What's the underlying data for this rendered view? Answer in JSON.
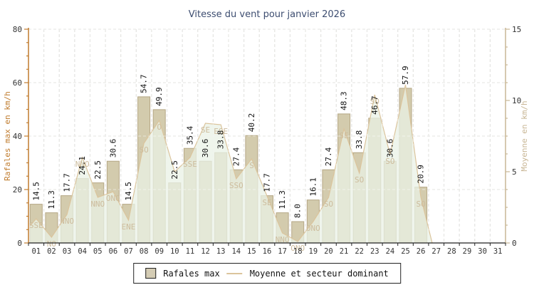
{
  "title": "Vitesse du vent pour janvier 2026",
  "legend": {
    "rafales_label": "Rafales max",
    "moyenne_label": "Moyenne et secteur dominant"
  },
  "chart_data": {
    "type": "bar",
    "title": "Vitesse du vent pour janvier 2026",
    "xlabel": "",
    "ylabel_left": "Rafales max en km/h",
    "ylabel_right": "Moyenne en km/h",
    "ylim_left": [
      0,
      80
    ],
    "ylim_right": [
      0,
      15
    ],
    "left_ticks": [
      0,
      20,
      40,
      60,
      80
    ],
    "right_ticks": [
      0,
      5,
      10,
      15
    ],
    "grid": true,
    "legend_position": "bottom",
    "categories": [
      "01",
      "02",
      "03",
      "04",
      "05",
      "06",
      "07",
      "08",
      "09",
      "10",
      "11",
      "12",
      "13",
      "14",
      "15",
      "16",
      "17",
      "18",
      "19",
      "20",
      "21",
      "22",
      "23",
      "24",
      "25",
      "26",
      "27",
      "28",
      "29",
      "30",
      "31"
    ],
    "series": [
      {
        "name": "Rafales max",
        "type": "bar",
        "axis": "left",
        "values": [
          14.5,
          11.3,
          17.7,
          24.1,
          22.5,
          30.6,
          14.5,
          54.7,
          49.9,
          22.5,
          35.4,
          30.6,
          33.8,
          27.4,
          40.2,
          17.7,
          11.3,
          8.0,
          16.1,
          27.4,
          48.3,
          33.8,
          46.7,
          30.6,
          57.9,
          20.9,
          null,
          null,
          null,
          null,
          null
        ]
      },
      {
        "name": "Moyenne et secteur dominant",
        "type": "area",
        "axis": "right",
        "values": [
          1.7,
          0.4,
          2.0,
          6.0,
          3.2,
          3.6,
          1.6,
          7.0,
          8.6,
          5.0,
          6.0,
          8.4,
          8.3,
          4.5,
          5.9,
          3.3,
          0.7,
          0.1,
          1.5,
          3.2,
          8.0,
          4.9,
          10.4,
          6.2,
          11.1,
          3.2,
          null,
          null,
          null,
          null,
          null
        ],
        "sectors": [
          "SSE",
          "NO",
          "NNO",
          "NNO",
          "NNO",
          "ONO",
          "ENE",
          "SO",
          "O",
          "",
          "SSE",
          "SE",
          "ESE",
          "SSO",
          "S",
          "SE",
          "NNO",
          "ONO",
          "ONO",
          "SO",
          "SE",
          "SO",
          "SO",
          "SO",
          "",
          "SO",
          "",
          "",
          "",
          "",
          ""
        ]
      }
    ]
  },
  "colors": {
    "bar_fill": "#d3cbad",
    "bar_stroke": "#b5a785",
    "area_fill": "#e9f1e6",
    "area_stroke": "#dbc49c",
    "grid": "#c9c9c3",
    "axis_left": "#c07c2e",
    "axis_right": "#c9b796",
    "axis_bottom": "#222222",
    "tick_text": "#333333",
    "value_text": "#111111",
    "sector_text": "#cdbc9d",
    "title_text": "#3d4d70"
  }
}
